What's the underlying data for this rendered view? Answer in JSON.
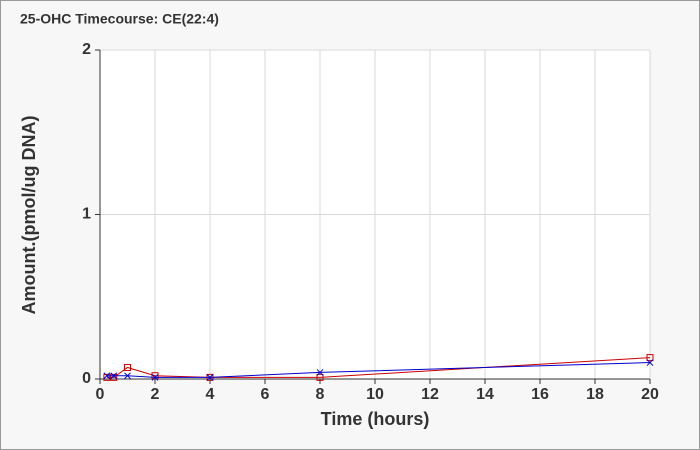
{
  "chart_data": {
    "type": "line",
    "title": "25-OHC Timecourse: CE(22:4)",
    "xlabel": "Time (hours)",
    "ylabel": "Amount.(pmol/ug DNA)",
    "x": [
      0.25,
      0.5,
      1,
      2,
      4,
      8,
      20
    ],
    "series": [
      {
        "color": "#cc0000",
        "marker": "square",
        "values": [
          0.01,
          0.01,
          0.07,
          0.02,
          0.01,
          0.01,
          0.13
        ]
      },
      {
        "color": "#0000cc",
        "marker": "x",
        "values": [
          0.02,
          0.02,
          0.02,
          0.01,
          0.01,
          0.04,
          0.1
        ]
      }
    ],
    "xlim": [
      0,
      20
    ],
    "xticks": [
      0,
      2,
      4,
      6,
      8,
      10,
      12,
      14,
      16,
      18,
      20
    ],
    "ylim": [
      0,
      2
    ],
    "yticks": [
      0,
      1,
      2
    ],
    "grid": true
  }
}
